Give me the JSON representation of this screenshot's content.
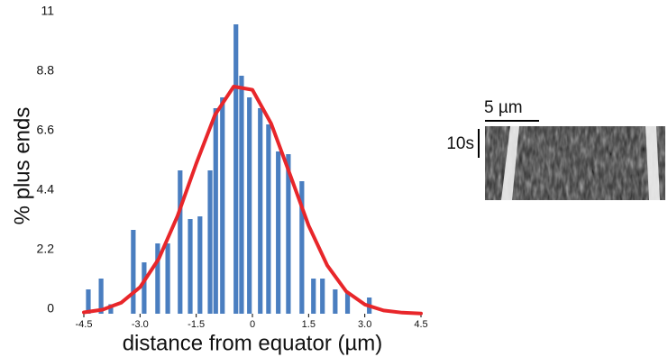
{
  "chart_data": {
    "type": "bar",
    "xlabel": "distance from equator (µm)",
    "ylabel": "% plus ends",
    "xlim": [
      -4.5,
      4.5
    ],
    "ylim": [
      0,
      11
    ],
    "xticks": [
      -4.5,
      {
        "value": -3,
        "label": "-3.0"
      },
      -1.5,
      0,
      1.5,
      {
        "value": 3,
        "label": "3.0"
      },
      4.5
    ],
    "yticks": [
      0,
      2.2,
      4.4,
      6.6,
      8.8,
      11
    ],
    "series": [
      {
        "type": "bar",
        "color": "#4a7ec0",
        "x": [
          -4.38,
          -4.04,
          -3.78,
          -3.18,
          -2.89,
          -2.53,
          -2.26,
          -1.93,
          -1.66,
          -1.4,
          -1.13,
          -0.98,
          -0.8,
          -0.44,
          -0.29,
          -0.08,
          0.21,
          0.43,
          0.69,
          0.96,
          1.32,
          1.63,
          1.87,
          2.21,
          2.54,
          3.12
        ],
        "values": [
          0.9,
          1.3,
          0.35,
          3.1,
          1.9,
          2.6,
          2.6,
          5.3,
          3.5,
          3.6,
          5.3,
          7.6,
          8.0,
          10.7,
          8.8,
          8.0,
          7.6,
          7.0,
          6.0,
          5.9,
          4.9,
          1.3,
          1.3,
          0.9,
          0.8,
          0.6
        ]
      },
      {
        "type": "line",
        "color": "#e8262a",
        "x": [
          -4.5,
          -4,
          -3.5,
          -3,
          -2.5,
          -2,
          -1.5,
          -1,
          -0.5,
          0,
          0.5,
          1,
          1.5,
          2,
          2.5,
          3,
          3.5,
          4,
          4.5
        ],
        "values": [
          0.05,
          0.15,
          0.41,
          0.98,
          2.03,
          3.61,
          5.55,
          7.35,
          8.4,
          8.28,
          7.03,
          5.16,
          3.26,
          1.78,
          0.83,
          0.34,
          0.12,
          0.04,
          0.01
        ]
      }
    ]
  },
  "inset": {
    "scale_bar_label": "5 µm",
    "time_bar_label": "10s"
  }
}
